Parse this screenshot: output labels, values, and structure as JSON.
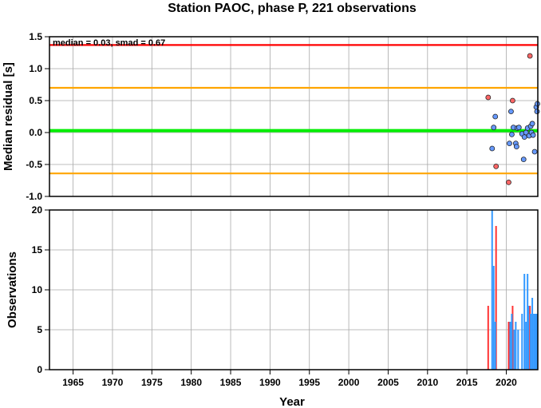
{
  "chart_data": [
    {
      "type": "scatter",
      "title": "Station PAOC, phase P, 221 observations",
      "ylabel": "Median residual [s]",
      "xlim": [
        1962,
        2024
      ],
      "ylim": [
        -1.0,
        1.5
      ],
      "yticks": [
        1.5,
        1.0,
        0.5,
        0.0,
        -0.5,
        -1.0
      ],
      "ytick_labels": [
        "1.5",
        "1.0",
        "0.5",
        "0.0",
        "-0.5",
        "-1.0"
      ],
      "grid": true,
      "annotation": "median = 0.03, smad = 0.67",
      "hlines": [
        {
          "y": 1.37,
          "color": "#ff0000"
        },
        {
          "y": 0.7,
          "color": "#ffa500"
        },
        {
          "y": 0.03,
          "color": "#00ee00"
        },
        {
          "y": -0.64,
          "color": "#ffa500"
        }
      ],
      "series": [
        {
          "color": "#ff6666",
          "points": [
            [
              2017.7,
              0.55
            ],
            [
              2018.7,
              -0.53
            ],
            [
              2020.3,
              -0.78
            ],
            [
              2020.8,
              0.5
            ],
            [
              2023.0,
              1.2
            ]
          ]
        },
        {
          "color": "#6699ff",
          "points": [
            [
              2018.2,
              -0.25
            ],
            [
              2018.4,
              0.08
            ],
            [
              2018.6,
              0.25
            ],
            [
              2020.4,
              -0.17
            ],
            [
              2020.6,
              0.33
            ],
            [
              2020.7,
              -0.03
            ],
            [
              2020.9,
              0.08
            ],
            [
              2021.2,
              -0.17
            ],
            [
              2021.3,
              -0.22
            ],
            [
              2021.4,
              0.07
            ],
            [
              2021.6,
              0.08
            ],
            [
              2022.0,
              -0.02
            ],
            [
              2022.2,
              -0.42
            ],
            [
              2022.3,
              -0.07
            ],
            [
              2022.5,
              0.0
            ],
            [
              2022.7,
              0.07
            ],
            [
              2022.9,
              -0.05
            ],
            [
              2023.1,
              0.1
            ],
            [
              2023.2,
              0.0
            ],
            [
              2023.3,
              0.14
            ],
            [
              2023.4,
              -0.04
            ],
            [
              2023.6,
              -0.3
            ],
            [
              2023.8,
              0.4
            ],
            [
              2023.9,
              0.33
            ],
            [
              2023.95,
              0.45
            ]
          ]
        }
      ]
    },
    {
      "type": "bar",
      "ylabel": "Observations",
      "xlabel": "Year",
      "xlim": [
        1962,
        2024
      ],
      "ylim": [
        0,
        20
      ],
      "xticks": [
        1965,
        1970,
        1975,
        1980,
        1985,
        1990,
        1995,
        2000,
        2005,
        2010,
        2015,
        2020
      ],
      "xtick_labels": [
        "1965",
        "1970",
        "1975",
        "1980",
        "1985",
        "1990",
        "1995",
        "2000",
        "2005",
        "2010",
        "2015",
        "2020"
      ],
      "yticks": [
        20,
        15,
        10,
        5,
        0
      ],
      "ytick_labels": [
        "20",
        "15",
        "10",
        "5",
        "0"
      ],
      "grid": true,
      "series": [
        {
          "color": "#ff3333",
          "bars": [
            [
              2017.7,
              8
            ],
            [
              2018.7,
              18
            ],
            [
              2020.3,
              6
            ],
            [
              2020.8,
              8
            ],
            [
              2023.0,
              8
            ]
          ]
        },
        {
          "color": "#3399ff",
          "bars": [
            [
              2018.2,
              20
            ],
            [
              2018.4,
              13
            ],
            [
              2018.6,
              6
            ],
            [
              2020.5,
              6
            ],
            [
              2020.7,
              7
            ],
            [
              2021.0,
              5
            ],
            [
              2021.2,
              6
            ],
            [
              2021.5,
              5
            ],
            [
              2022.0,
              7
            ],
            [
              2022.3,
              12
            ],
            [
              2022.5,
              6
            ],
            [
              2022.7,
              12
            ],
            [
              2022.8,
              8
            ],
            [
              2023.1,
              7
            ],
            [
              2023.3,
              9
            ],
            [
              2023.5,
              7
            ],
            [
              2023.7,
              7
            ],
            [
              2023.9,
              7
            ]
          ]
        }
      ]
    }
  ]
}
